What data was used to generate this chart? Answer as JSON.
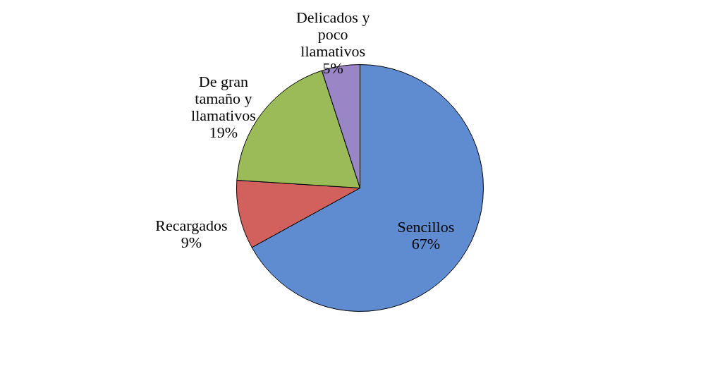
{
  "chart_data": {
    "type": "pie",
    "categories": [
      "Sencillos",
      "Recargados",
      "De gran tamaño y llamativos",
      "Delicados y poco llamativos"
    ],
    "values": [
      67,
      9,
      19,
      5
    ],
    "value_labels": [
      "67%",
      "9%",
      "19%",
      "5%"
    ],
    "colors": [
      "#5f8bd0",
      "#d2605d",
      "#9bbb59",
      "#9a86c6"
    ],
    "legend": false
  }
}
